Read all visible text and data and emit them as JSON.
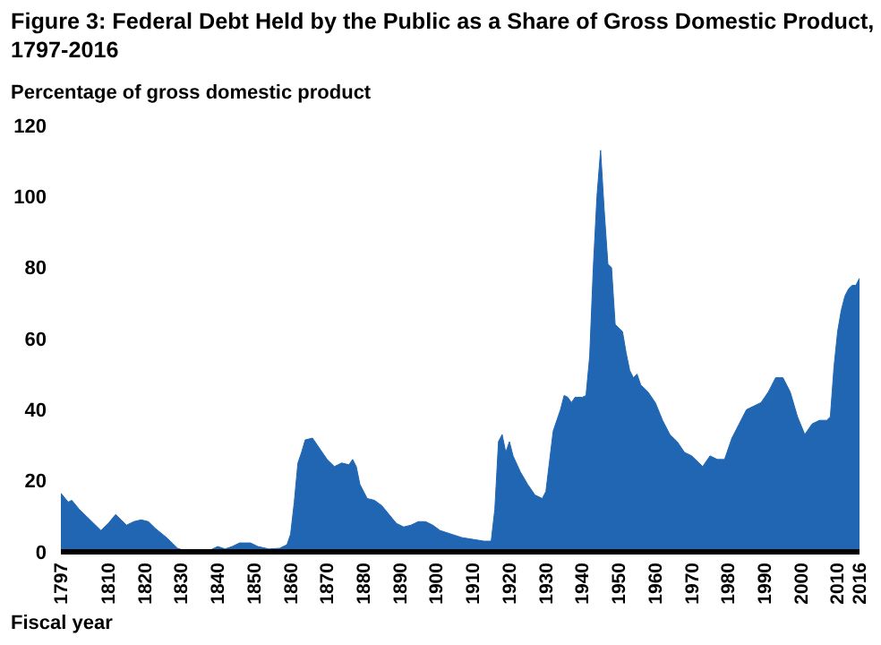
{
  "chart_data": {
    "type": "area",
    "title": "Figure 3: Federal Debt Held by the Public as a Share of Gross Domestic Product, 1797-2016",
    "ylabel": "Percentage of gross domestic product",
    "xlabel": "Fiscal year",
    "x": [
      1797,
      1799,
      1800,
      1802,
      1804,
      1806,
      1808,
      1810,
      1812,
      1815,
      1817,
      1819,
      1821,
      1823,
      1826,
      1829,
      1831,
      1835,
      1838,
      1840,
      1842,
      1844,
      1846,
      1849,
      1851,
      1854,
      1857,
      1859,
      1860,
      1861,
      1862,
      1863,
      1864,
      1866,
      1868,
      1870,
      1872,
      1874,
      1876,
      1877,
      1878,
      1879,
      1881,
      1883,
      1885,
      1887,
      1889,
      1891,
      1893,
      1895,
      1897,
      1899,
      1901,
      1904,
      1907,
      1910,
      1913,
      1915,
      1916,
      1917,
      1918,
      1919,
      1920,
      1921,
      1923,
      1925,
      1927,
      1929,
      1930,
      1932,
      1934,
      1935,
      1936,
      1937,
      1938,
      1940,
      1941,
      1942,
      1943,
      1944,
      1945,
      1946,
      1947,
      1948,
      1949,
      1950,
      1951,
      1952,
      1953,
      1954,
      1955,
      1956,
      1958,
      1960,
      1962,
      1964,
      1966,
      1968,
      1970,
      1972,
      1973,
      1975,
      1977,
      1979,
      1981,
      1983,
      1985,
      1987,
      1989,
      1991,
      1993,
      1995,
      1997,
      1999,
      2001,
      2003,
      2005,
      2007,
      2008,
      2009,
      2010,
      2011,
      2012,
      2013,
      2014,
      2015,
      2016
    ],
    "series": [
      {
        "color": "#2166b3",
        "values": [
          16.5,
          14,
          14.5,
          12,
          10,
          8,
          6,
          8,
          10.5,
          7.5,
          8.5,
          9,
          8.5,
          6.5,
          4,
          1,
          0.3,
          0,
          0.5,
          1.5,
          0.8,
          1.5,
          2.5,
          2.5,
          1.5,
          0.8,
          1,
          2,
          5,
          14,
          25,
          28,
          31.5,
          32,
          29,
          26,
          24,
          25,
          24.5,
          26,
          24,
          19,
          15,
          14.5,
          13,
          10.5,
          8,
          7,
          7.5,
          8.5,
          8.5,
          7.5,
          6,
          5,
          4,
          3.5,
          3,
          3,
          12,
          31,
          33,
          28,
          31,
          27,
          22.5,
          19,
          16,
          15,
          17,
          34,
          40,
          44,
          43.5,
          42,
          43.5,
          43.5,
          44,
          55,
          80,
          100,
          113,
          96,
          81,
          80,
          64,
          63,
          62,
          56,
          51,
          49,
          50,
          47,
          45,
          42,
          37,
          33,
          31,
          28,
          27,
          25,
          24,
          27,
          26,
          26,
          32,
          36,
          40,
          41,
          42,
          45,
          49,
          49,
          45,
          38,
          33,
          36,
          37,
          37,
          38,
          52,
          62,
          68,
          72,
          74,
          75,
          75,
          77
        ]
      }
    ],
    "ylim": [
      0,
      120
    ],
    "yticks": [
      0,
      20,
      40,
      60,
      80,
      100,
      120
    ],
    "xlim": [
      1797,
      2016
    ],
    "xticks": [
      1797,
      1810,
      1820,
      1830,
      1840,
      1850,
      1860,
      1870,
      1880,
      1890,
      1900,
      1910,
      1920,
      1930,
      1940,
      1950,
      1960,
      1970,
      1980,
      1990,
      2000,
      2010,
      2016
    ],
    "grid": false
  }
}
